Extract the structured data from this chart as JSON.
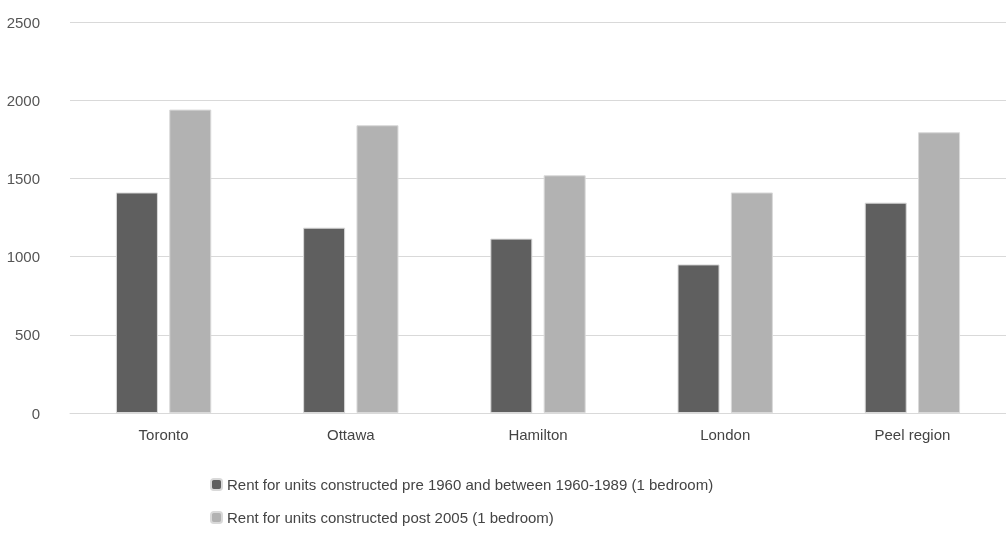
{
  "chart_data": {
    "type": "bar",
    "categories": [
      "Toronto",
      "Ottawa",
      "Hamilton",
      "London",
      "Peel region"
    ],
    "series": [
      {
        "name": "Rent for units constructed pre 1960 and between 1960-1989 (1 bedroom)",
        "color": "#5f5f5f",
        "values": [
          1410,
          1185,
          1115,
          950,
          1345
        ]
      },
      {
        "name": "Rent for units constructed post 2005 (1 bedroom)",
        "color": "#b2b2b2",
        "values": [
          1940,
          1840,
          1520,
          1410,
          1795
        ]
      }
    ],
    "ylim": [
      0,
      2500
    ],
    "yticks": [
      0,
      500,
      1000,
      1500,
      2000,
      2500
    ],
    "grid": "y",
    "legend": "bottom"
  }
}
